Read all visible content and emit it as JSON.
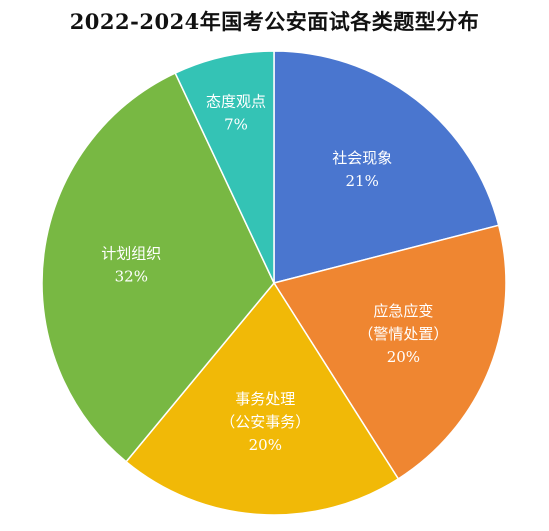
{
  "chart_data": {
    "type": "pie",
    "title": "2022-2024年国考公安面试各类题型分布",
    "slices": [
      {
        "label_lines": [
          "社会现象"
        ],
        "value": 21,
        "value_label": "21%",
        "color": "#4a76cf"
      },
      {
        "label_lines": [
          "应急应变",
          "（警情处置）"
        ],
        "value": 20,
        "value_label": "20%",
        "color": "#ef8631"
      },
      {
        "label_lines": [
          "事务处理",
          "（公安事务）"
        ],
        "value": 20,
        "value_label": "20%",
        "color": "#f1b907"
      },
      {
        "label_lines": [
          "计划组织"
        ],
        "value": 32,
        "value_label": "32%",
        "color": "#78b843"
      },
      {
        "label_lines": [
          "态度观点"
        ],
        "value": 7,
        "value_label": "7%",
        "color": "#34c3b5"
      }
    ],
    "start": "top",
    "direction": "clockwise",
    "legend": "none"
  }
}
